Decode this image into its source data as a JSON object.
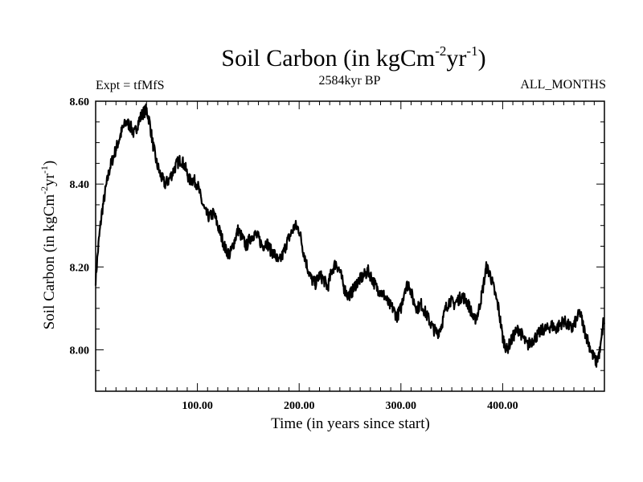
{
  "header": {
    "title_main": "Soil Carbon (in kgCm",
    "title_sup1": "-2",
    "title_mid": "yr",
    "title_sup2": "-1",
    "title_end": ")",
    "expt": "Expt = tfMfS",
    "period": "2584kyr BP",
    "months": "ALL_MONTHS"
  },
  "axes": {
    "xlabel": "Time (in years since start)",
    "ylabel_main": "Soil Carbon (in kgCm",
    "ylabel_sup1": "-2",
    "ylabel_mid": "yr",
    "ylabel_sup2": "-1",
    "ylabel_end": ")"
  },
  "chart_data": {
    "type": "line",
    "title": "Soil Carbon (in kgCm-2yr-1)",
    "subtitle": "2584kyr BP",
    "annotations": [
      "Expt = tfMfS",
      "ALL_MONTHS"
    ],
    "xlabel": "Time (in years since start)",
    "ylabel": "Soil Carbon (in kgCm-2yr-1)",
    "xlim": [
      0,
      500
    ],
    "ylim": [
      7.9,
      8.6
    ],
    "xticks": [
      100,
      200,
      300,
      400
    ],
    "xtick_labels": [
      "100.00",
      "200.00",
      "300.00",
      "400.00"
    ],
    "yticks": [
      8.0,
      8.2,
      8.4,
      8.6
    ],
    "ytick_labels": [
      "8.00",
      "8.20",
      "8.40",
      "8.60"
    ],
    "grid": false,
    "series": [
      {
        "name": "Soil Carbon",
        "x": [
          0,
          3,
          6,
          10,
          14,
          18,
          22,
          26,
          30,
          34,
          38,
          42,
          46,
          50,
          53,
          56,
          60,
          64,
          68,
          72,
          76,
          80,
          84,
          88,
          92,
          96,
          100,
          104,
          108,
          112,
          116,
          120,
          124,
          128,
          132,
          136,
          140,
          144,
          148,
          152,
          156,
          160,
          164,
          168,
          172,
          176,
          180,
          184,
          188,
          192,
          196,
          200,
          204,
          208,
          212,
          216,
          220,
          224,
          228,
          232,
          236,
          240,
          244,
          248,
          252,
          256,
          260,
          264,
          268,
          272,
          276,
          280,
          284,
          288,
          292,
          296,
          300,
          304,
          308,
          312,
          316,
          320,
          324,
          328,
          332,
          336,
          340,
          344,
          348,
          352,
          356,
          360,
          364,
          368,
          372,
          376,
          380,
          384,
          388,
          392,
          396,
          400,
          404,
          408,
          412,
          416,
          420,
          424,
          428,
          432,
          436,
          440,
          444,
          448,
          452,
          456,
          460,
          464,
          468,
          472,
          476,
          480,
          484,
          488,
          492,
          496,
          499
        ],
        "values": [
          8.17,
          8.26,
          8.33,
          8.39,
          8.44,
          8.47,
          8.5,
          8.53,
          8.55,
          8.54,
          8.52,
          8.55,
          8.57,
          8.58,
          8.55,
          8.5,
          8.45,
          8.42,
          8.4,
          8.41,
          8.43,
          8.45,
          8.46,
          8.44,
          8.41,
          8.41,
          8.4,
          8.36,
          8.33,
          8.32,
          8.33,
          8.3,
          8.27,
          8.24,
          8.23,
          8.26,
          8.29,
          8.27,
          8.25,
          8.27,
          8.28,
          8.27,
          8.25,
          8.26,
          8.24,
          8.23,
          8.21,
          8.23,
          8.26,
          8.28,
          8.3,
          8.29,
          8.24,
          8.2,
          8.17,
          8.16,
          8.18,
          8.17,
          8.15,
          8.19,
          8.21,
          8.19,
          8.15,
          8.13,
          8.14,
          8.16,
          8.17,
          8.18,
          8.19,
          8.17,
          8.15,
          8.14,
          8.13,
          8.11,
          8.1,
          8.08,
          8.1,
          8.15,
          8.16,
          8.12,
          8.1,
          8.11,
          8.09,
          8.07,
          8.05,
          8.04,
          8.06,
          8.1,
          8.12,
          8.11,
          8.12,
          8.13,
          8.12,
          8.1,
          8.07,
          8.09,
          8.14,
          8.2,
          8.18,
          8.14,
          8.1,
          8.03,
          8.0,
          8.02,
          8.04,
          8.05,
          8.03,
          8.01,
          8.02,
          8.03,
          8.04,
          8.05,
          8.05,
          8.06,
          8.05,
          8.06,
          8.07,
          8.06,
          8.05,
          8.07,
          8.09,
          8.05,
          8.02,
          7.99,
          7.97,
          8.0,
          8.07
        ]
      }
    ]
  }
}
